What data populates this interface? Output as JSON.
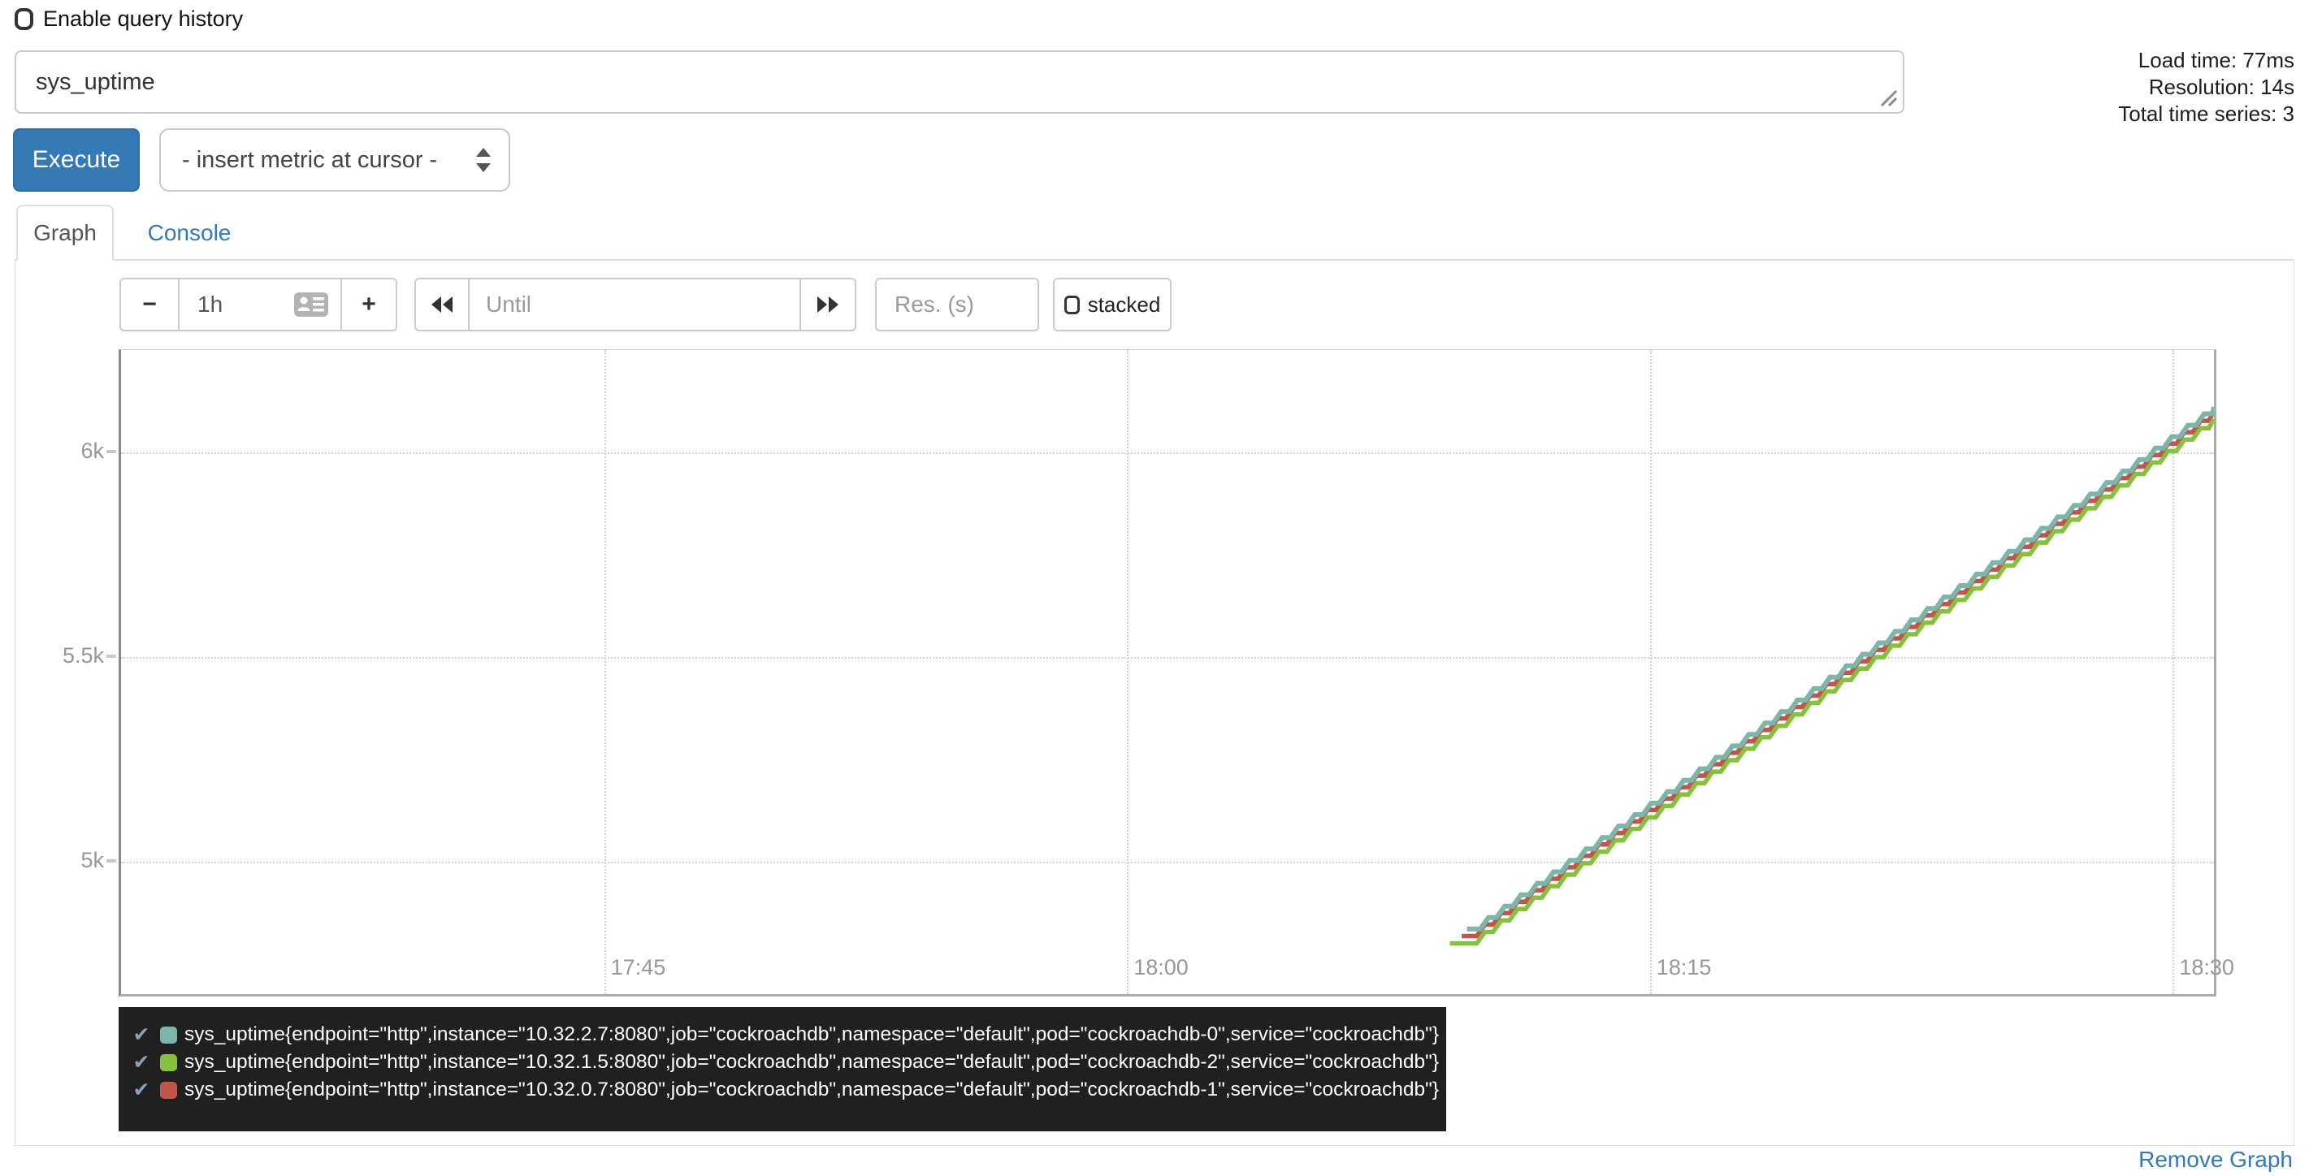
{
  "header": {
    "enable_query_history_label": "Enable query history"
  },
  "query": {
    "value": "sys_uptime",
    "execute_label": "Execute",
    "insert_metric_placeholder": "- insert metric at cursor -",
    "stats": {
      "load_time": "Load time: 77ms",
      "resolution": "Resolution: 14s",
      "total_series": "Total time series: 3"
    }
  },
  "tabs": {
    "graph_label": "Graph",
    "console_label": "Console"
  },
  "controls": {
    "minus_label": "−",
    "plus_label": "+",
    "range_value": "1h",
    "until_placeholder": "Until",
    "res_placeholder": "Res. (s)",
    "stacked_label": "stacked"
  },
  "chart_data": {
    "type": "line",
    "title": "",
    "xlabel": "",
    "ylabel": "",
    "grid": "dotted",
    "legend_position": "bottom",
    "x_axis": {
      "unit": "time of day",
      "tick_labels": [
        "17:45",
        "18:00",
        "18:15",
        "18:30"
      ],
      "tick_minutes": [
        45,
        60,
        75,
        90
      ],
      "range_minutes": [
        31.14,
        91.18
      ],
      "note": "minutes after 17:00; window is ~1h ending ~18:31"
    },
    "y_axis": {
      "unit": "seconds (uptime)",
      "tick_labels": [
        "5k",
        "5.5k",
        "6k"
      ],
      "tick_values": [
        5000,
        5500,
        6000
      ],
      "range": [
        4676,
        6251
      ]
    },
    "series": [
      {
        "name": "sys_uptime{endpoint=\"http\",instance=\"10.32.2.7:8080\",job=\"cockroachdb\",namespace=\"default\",pod=\"cockroachdb-0\",service=\"cockroachdb\"}",
        "color": "#7EB5AB",
        "flat_from_min": 69.75,
        "start_min": 69.9,
        "start_value": 4835,
        "end_min": 91.18,
        "end_value": 6112,
        "slope_per_sec": 1,
        "step_sec": 14,
        "stroke_width": 6,
        "z": 2
      },
      {
        "name": "sys_uptime{endpoint=\"http\",instance=\"10.32.1.5:8080\",job=\"cockroachdb\",namespace=\"default\",pod=\"cockroachdb-2\",service=\"cockroachdb\"}",
        "color": "#85C13E",
        "flat_from_min": 69.26,
        "start_min": 69.8,
        "start_value": 4800,
        "end_min": 91.18,
        "end_value": 6083,
        "slope_per_sec": 1,
        "step_sec": 14,
        "stroke_width": 5.5,
        "z": 3
      },
      {
        "name": "sys_uptime{endpoint=\"http\",instance=\"10.32.0.7:8080\",job=\"cockroachdb\",namespace=\"default\",pod=\"cockroachdb-1\",service=\"cockroachdb\"}",
        "color": "#C0564A",
        "flat_from_min": 69.6,
        "start_min": 69.8,
        "start_value": 4818,
        "end_min": 91.18,
        "end_value": 6101,
        "slope_per_sec": 1,
        "step_sec": 14,
        "stroke_width": 5.5,
        "z": 1
      }
    ],
    "legend_check_glyph": "✔"
  },
  "footer": {
    "remove_graph_label": "Remove Graph"
  },
  "colors": {
    "accent_blue": "#337ab7",
    "legend_bg": "#202020",
    "axis_label": "#979797",
    "grid": "#d2d2d2"
  }
}
